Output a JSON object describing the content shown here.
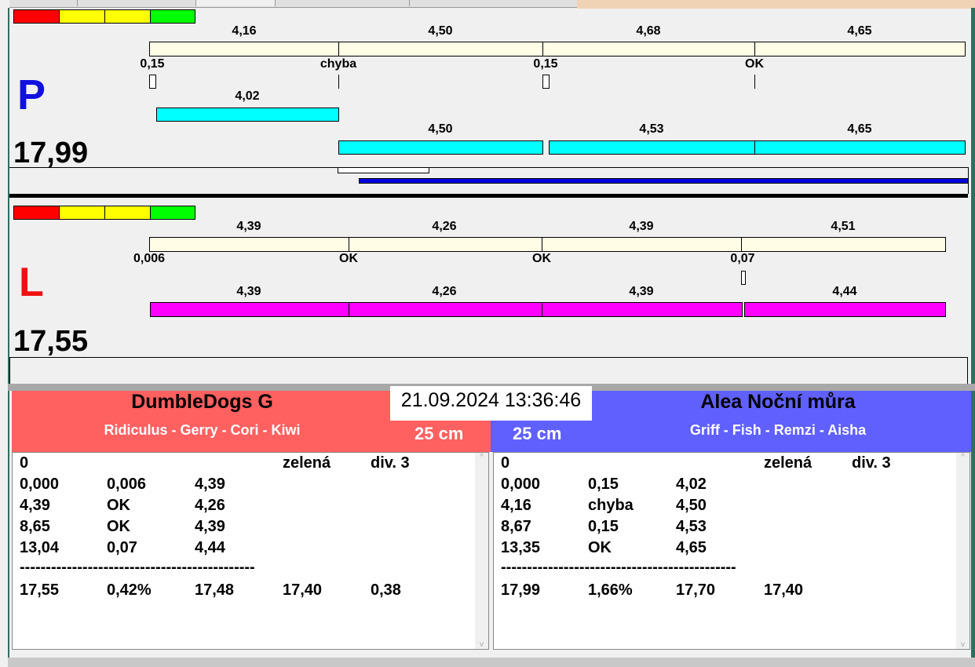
{
  "colors": {
    "red": "#ff0000",
    "yellow": "#ffff00",
    "green": "#00ff00",
    "cream": "#fffde6",
    "cyan": "#00ffff",
    "magenta": "#ff00ff",
    "blue": "#0000e0",
    "panel_red": "#ff6060",
    "panel_blue": "#6060ff"
  },
  "top": {
    "letter": "P",
    "total": "17,99",
    "seg_labels": [
      "4,16",
      "4,50",
      "4,68",
      "4,65"
    ],
    "marks": [
      "0,15",
      "chyba",
      "0,15",
      "OK"
    ],
    "row1": [
      "4,02"
    ],
    "row2": [
      "4,50",
      "4,53",
      "4,65"
    ]
  },
  "bottom": {
    "letter": "L",
    "total": "17,55",
    "seg_labels": [
      "4,39",
      "4,26",
      "4,39",
      "4,51"
    ],
    "marks": [
      "0,006",
      "OK",
      "OK",
      "0,07"
    ],
    "row1": [
      "4,39",
      "4,26",
      "4,39",
      "4,44"
    ]
  },
  "datetime": "21.09.2024 13:36:46",
  "left_team": {
    "name": "DumbleDogs G",
    "dogs": "Ridiculus - Gerry - Cori - Kiwi",
    "height": "25 cm",
    "rows": [
      [
        "0",
        "",
        "",
        "zelená",
        "div. 3"
      ],
      [
        "0,000",
        "0,006",
        "4,39"
      ],
      [
        "4,39",
        "OK",
        "4,26"
      ],
      [
        "8,65",
        "OK",
        "4,39"
      ],
      [
        "13,04",
        "0,07",
        "4,44"
      ]
    ],
    "divider": "---------------------------------------------",
    "totals": [
      "17,55",
      "0,42%",
      "17,48",
      "17,40",
      "0,38"
    ]
  },
  "right_team": {
    "name": "Alea Noční můra",
    "dogs": "Griff - Fish - Remzi - Aisha",
    "height": "25 cm",
    "rows": [
      [
        "0",
        "",
        "",
        "zelená",
        "div. 3"
      ],
      [
        "0,000",
        "0,15",
        "4,02"
      ],
      [
        "4,16",
        "chyba",
        "4,50"
      ],
      [
        "8,67",
        "0,15",
        "4,53"
      ],
      [
        "13,35",
        "OK",
        "4,65"
      ]
    ],
    "divider": "---------------------------------------------",
    "totals": [
      "17,99",
      "1,66%",
      "17,70",
      "17,40"
    ]
  }
}
